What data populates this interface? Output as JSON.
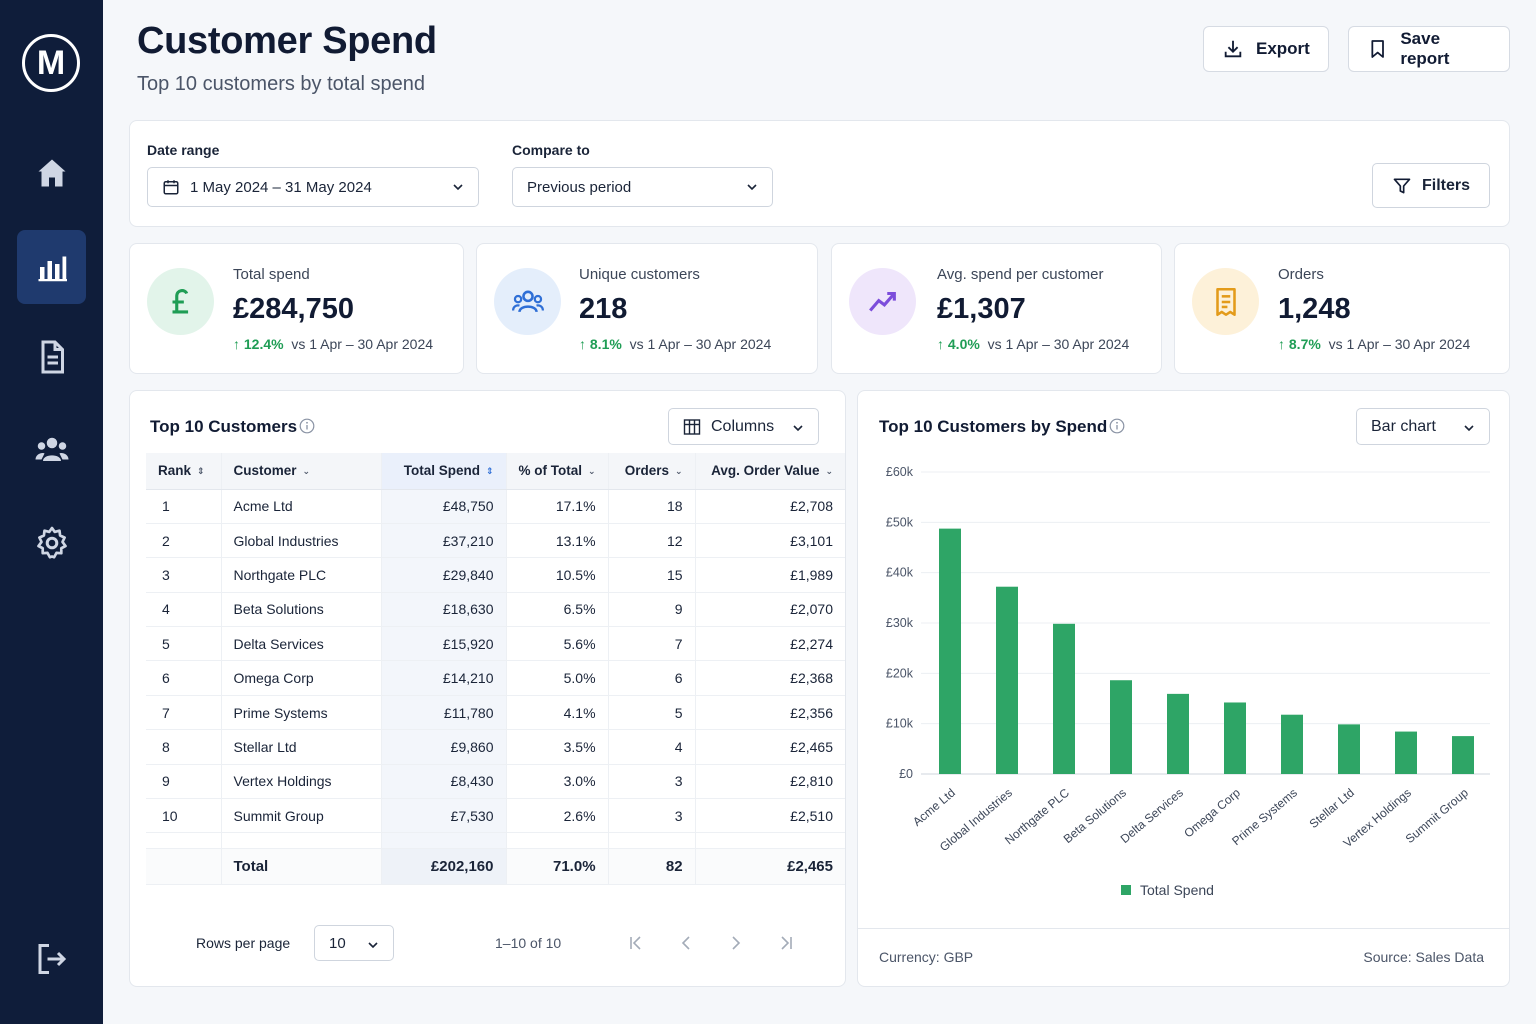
{
  "brand": {
    "logo_letter": "M"
  },
  "sidebar": {
    "items": [
      {
        "name": "home",
        "icon": "home-icon"
      },
      {
        "name": "reports",
        "icon": "bar-chart-icon",
        "active": true
      },
      {
        "name": "documents",
        "icon": "document-icon"
      },
      {
        "name": "customers",
        "icon": "users-icon"
      },
      {
        "name": "settings",
        "icon": "gear-icon"
      },
      {
        "name": "logout",
        "icon": "logout-icon"
      }
    ]
  },
  "header": {
    "title": "Customer Spend",
    "subtitle": "Top 10 customers by total spend",
    "export_label": "Export",
    "save_label": "Save report"
  },
  "filters": {
    "date_range_label": "Date range",
    "date_range_value": "1 May 2024 – 31 May 2024",
    "compare_label": "Compare to",
    "compare_value": "Previous period",
    "filters_button": "Filters"
  },
  "kpis": [
    {
      "label": "Total spend",
      "value": "£284,750",
      "delta": "12.4%",
      "period": "vs 1 Apr – 30 Apr 2024",
      "icon": "pound-icon",
      "color": "#1f9d55"
    },
    {
      "label": "Unique customers",
      "value": "218",
      "delta": "8.1%",
      "period": "vs 1 Apr – 30 Apr 2024",
      "icon": "users-icon",
      "color": "#2f6fd6"
    },
    {
      "label": "Avg. spend per customer",
      "value": "£1,307",
      "delta": "4.0%",
      "period": "vs 1 Apr – 30 Apr 2024",
      "icon": "trend-up-icon",
      "color": "#7c4ddb"
    },
    {
      "label": "Orders",
      "value": "1,248",
      "delta": "8.7%",
      "period": "vs 1 Apr – 30 Apr 2024",
      "icon": "receipt-icon",
      "color": "#e39b1a"
    }
  ],
  "table": {
    "title": "Top 10 Customers",
    "columns_button": "Columns",
    "headers": [
      "Rank",
      "Customer",
      "Total Spend",
      "% of Total",
      "Orders",
      "Avg. Order Value"
    ],
    "rows": [
      [
        "1",
        "Acme Ltd",
        "£48,750",
        "17.1%",
        "18",
        "£2,708"
      ],
      [
        "2",
        "Global Industries",
        "£37,210",
        "13.1%",
        "12",
        "£3,101"
      ],
      [
        "3",
        "Northgate PLC",
        "£29,840",
        "10.5%",
        "15",
        "£1,989"
      ],
      [
        "4",
        "Beta Solutions",
        "£18,630",
        "6.5%",
        "9",
        "£2,070"
      ],
      [
        "5",
        "Delta Services",
        "£15,920",
        "5.6%",
        "7",
        "£2,274"
      ],
      [
        "6",
        "Omega Corp",
        "£14,210",
        "5.0%",
        "6",
        "£2,368"
      ],
      [
        "7",
        "Prime Systems",
        "£11,780",
        "4.1%",
        "5",
        "£2,356"
      ],
      [
        "8",
        "Stellar Ltd",
        "£9,860",
        "3.5%",
        "4",
        "£2,465"
      ],
      [
        "9",
        "Vertex Holdings",
        "£8,430",
        "3.0%",
        "3",
        "£2,810"
      ],
      [
        "10",
        "Summit Group",
        "£7,530",
        "2.6%",
        "3",
        "£2,510"
      ]
    ],
    "total": [
      "",
      "Total",
      "£202,160",
      "71.0%",
      "82",
      "£2,465"
    ],
    "rows_per_page_label": "Rows per page",
    "rows_per_page_value": "10",
    "range_text": "1–10 of 10"
  },
  "chart_panel": {
    "title": "Top 10 Customers by Spend",
    "type_select": "Bar chart",
    "currency_note": "Currency: GBP",
    "source_note": "Source: Sales Data"
  },
  "chart_data": {
    "type": "bar",
    "categories": [
      "Acme Ltd",
      "Global Industries",
      "Northgate PLC",
      "Beta Solutions",
      "Delta Services",
      "Omega Corp",
      "Prime Systems",
      "Stellar Ltd",
      "Vertex Holdings",
      "Summit Group"
    ],
    "series": [
      {
        "name": "Total Spend",
        "values": [
          48750,
          37210,
          29840,
          18630,
          15920,
          14210,
          11780,
          9860,
          8430,
          7530
        ],
        "color": "#2ea566"
      }
    ],
    "y_ticks": [
      "£0",
      "£10k",
      "£20k",
      "£30k",
      "£40k",
      "£50k",
      "£60k"
    ],
    "ylim": [
      0,
      60000
    ],
    "grid": true,
    "legend": "bottom-center"
  }
}
